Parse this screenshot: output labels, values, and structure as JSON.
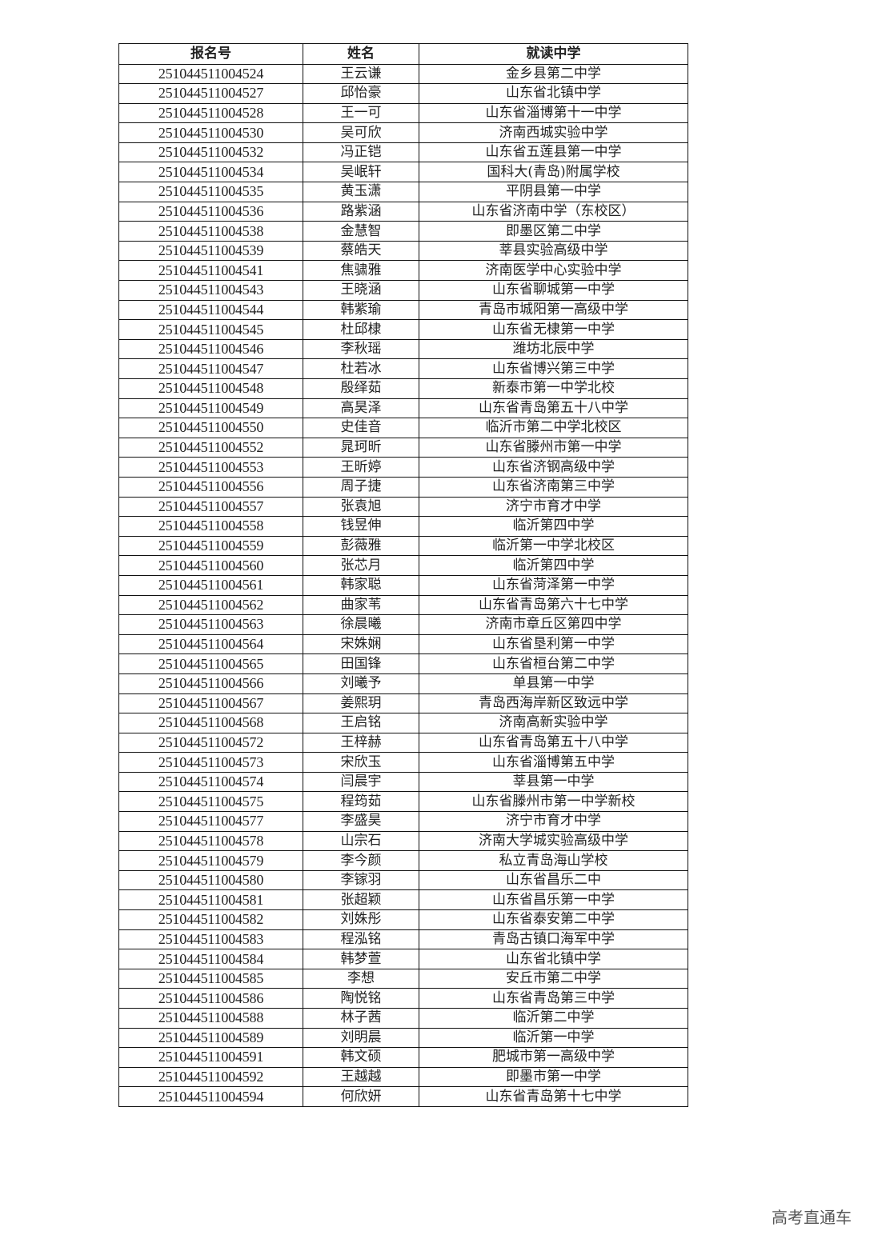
{
  "table": {
    "headers": [
      "报名号",
      "姓名",
      "就读中学"
    ],
    "rows": [
      [
        "251044511004524",
        "王云谦",
        "金乡县第二中学"
      ],
      [
        "251044511004527",
        "邱怡豪",
        "山东省北镇中学"
      ],
      [
        "251044511004528",
        "王一可",
        "山东省淄博第十一中学"
      ],
      [
        "251044511004530",
        "吴可欣",
        "济南西城实验中学"
      ],
      [
        "251044511004532",
        "冯正铠",
        "山东省五莲县第一中学"
      ],
      [
        "251044511004534",
        "吴岷轩",
        "国科大(青岛)附属学校"
      ],
      [
        "251044511004535",
        "黄玉潇",
        "平阴县第一中学"
      ],
      [
        "251044511004536",
        "路紫涵",
        "山东省济南中学（东校区）"
      ],
      [
        "251044511004538",
        "金慧智",
        "即墨区第二中学"
      ],
      [
        "251044511004539",
        "蔡皓天",
        "莘县实验高级中学"
      ],
      [
        "251044511004541",
        "焦骕雅",
        "济南医学中心实验中学"
      ],
      [
        "251044511004543",
        "王晓涵",
        "山东省聊城第一中学"
      ],
      [
        "251044511004544",
        "韩紫瑜",
        "青岛市城阳第一高级中学"
      ],
      [
        "251044511004545",
        "杜邱棣",
        "山东省无棣第一中学"
      ],
      [
        "251044511004546",
        "李秋瑶",
        "潍坊北辰中学"
      ],
      [
        "251044511004547",
        "杜若冰",
        "山东省博兴第三中学"
      ],
      [
        "251044511004548",
        "殷绎茹",
        "新泰市第一中学北校"
      ],
      [
        "251044511004549",
        "高昊泽",
        "山东省青岛第五十八中学"
      ],
      [
        "251044511004550",
        "史佳音",
        "临沂市第二中学北校区"
      ],
      [
        "251044511004552",
        "晁珂昕",
        "山东省滕州市第一中学"
      ],
      [
        "251044511004553",
        "王昕婷",
        "山东省济钢高级中学"
      ],
      [
        "251044511004556",
        "周子捷",
        "山东省济南第三中学"
      ],
      [
        "251044511004557",
        "张袁旭",
        "济宁市育才中学"
      ],
      [
        "251044511004558",
        "钱昱伸",
        "临沂第四中学"
      ],
      [
        "251044511004559",
        "彭薇雅",
        "临沂第一中学北校区"
      ],
      [
        "251044511004560",
        "张芯月",
        "临沂第四中学"
      ],
      [
        "251044511004561",
        "韩家聪",
        "山东省菏泽第一中学"
      ],
      [
        "251044511004562",
        "曲家苇",
        "山东省青岛第六十七中学"
      ],
      [
        "251044511004563",
        "徐晨曦",
        "济南市章丘区第四中学"
      ],
      [
        "251044511004564",
        "宋姝娴",
        "山东省垦利第一中学"
      ],
      [
        "251044511004565",
        "田国锋",
        "山东省桓台第二中学"
      ],
      [
        "251044511004566",
        "刘曦予",
        "单县第一中学"
      ],
      [
        "251044511004567",
        "姜熙玥",
        "青岛西海岸新区致远中学"
      ],
      [
        "251044511004568",
        "王启铭",
        "济南高新实验中学"
      ],
      [
        "251044511004572",
        "王梓赫",
        "山东省青岛第五十八中学"
      ],
      [
        "251044511004573",
        "宋欣玉",
        "山东省淄博第五中学"
      ],
      [
        "251044511004574",
        "闫晨宇",
        "莘县第一中学"
      ],
      [
        "251044511004575",
        "程筠茹",
        "山东省滕州市第一中学新校"
      ],
      [
        "251044511004577",
        "李盛昊",
        "济宁市育才中学"
      ],
      [
        "251044511004578",
        "山宗石",
        "济南大学城实验高级中学"
      ],
      [
        "251044511004579",
        "李今颜",
        "私立青岛海山学校"
      ],
      [
        "251044511004580",
        "李镓羽",
        "山东省昌乐二中"
      ],
      [
        "251044511004581",
        "张超颖",
        "山东省昌乐第一中学"
      ],
      [
        "251044511004582",
        "刘姝彤",
        "山东省泰安第二中学"
      ],
      [
        "251044511004583",
        "程泓铭",
        "青岛古镇口海军中学"
      ],
      [
        "251044511004584",
        "韩梦萱",
        "山东省北镇中学"
      ],
      [
        "251044511004585",
        "李想",
        "安丘市第二中学"
      ],
      [
        "251044511004586",
        "陶悦铭",
        "山东省青岛第三中学"
      ],
      [
        "251044511004588",
        "林子茜",
        "临沂第二中学"
      ],
      [
        "251044511004589",
        "刘明晨",
        "临沂第一中学"
      ],
      [
        "251044511004591",
        "韩文硕",
        "肥城市第一高级中学"
      ],
      [
        "251044511004592",
        "王越越",
        "即墨市第一中学"
      ],
      [
        "251044511004594",
        "何欣妍",
        "山东省青岛第十七中学"
      ]
    ]
  },
  "watermark": "高考直通车"
}
